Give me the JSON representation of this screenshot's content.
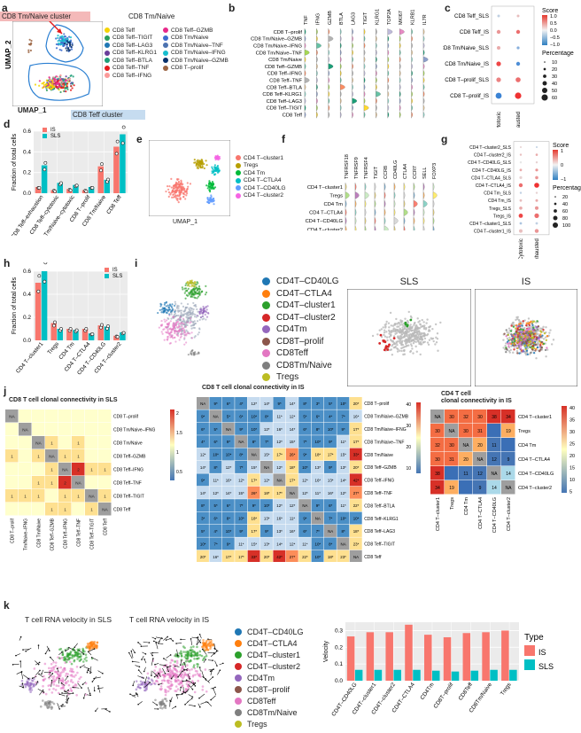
{
  "panels": {
    "a": "a",
    "b": "b",
    "c": "c",
    "d": "d",
    "e": "e",
    "f": "f",
    "g": "g",
    "h": "h",
    "i": "i",
    "j": "j",
    "k": "k"
  },
  "panel_a": {
    "title": "CD8 Tm/Naive",
    "callout_top": "CD8 Tm/Naive cluster",
    "callout_bottom": "CD8 Teff cluster",
    "xlabel": "UMAP_1",
    "ylabel": "UMAP_2",
    "legend": [
      {
        "label": "CD8 Teff",
        "color": "#f5d300"
      },
      {
        "label": "CD8 Teff–TIGIT",
        "color": "#2a9d5c"
      },
      {
        "label": "CD8 Teff–LAG3",
        "color": "#1f77b4"
      },
      {
        "label": "CD8 Teff–KLRG1",
        "color": "#6a3d9a"
      },
      {
        "label": "CD8 Teff–BTLA",
        "color": "#1b9e77"
      },
      {
        "label": "CD8 Teff–TNF",
        "color": "#e31a1c"
      },
      {
        "label": "CD8 Teff–IFNG",
        "color": "#fb9a99"
      },
      {
        "label": "CD8 Teff–GZMB",
        "color": "#e7298a"
      },
      {
        "label": "CD8 Tm/Naive",
        "color": "#3d6ccf"
      },
      {
        "label": "CD8 Tm/Naive–TNF",
        "color": "#4c72b0"
      },
      {
        "label": "CD8 Tm/Naive–IFNG",
        "color": "#17becf"
      },
      {
        "label": "CD8 Tm/Naive–GZMB",
        "color": "#08306b"
      },
      {
        "label": "CD8 T–prolif",
        "color": "#9c6644"
      }
    ]
  },
  "panel_b": {
    "genes": [
      "TNF",
      "IFNG",
      "GZMB",
      "BTLA",
      "LAG3",
      "TIGIT",
      "KLRG1",
      "TOP2A",
      "MKI67",
      "KLRB1",
      "IL7R"
    ],
    "rows": [
      "CD8 T–prolif",
      "CD8 Tm/Naive–GZMB",
      "CD8 Tm/Naive–IFNG",
      "CD8 Tm/Naive–TNF",
      "CD8 Tm/Naive",
      "CD8 Teff–GZMB",
      "CD8 Teff–IFNG",
      "CD8 Teff–TNF",
      "CD8 Teff–BTLA",
      "CD8 Teff–KLRG1",
      "CD8 Teff–LAG3",
      "CD8 Teff–TIGIT",
      "CD8 Teff"
    ]
  },
  "panel_c": {
    "rows": [
      "CD8 Teff_SLS",
      "CD8 Teff_IS",
      "CD8 Tm/Naive_SLS",
      "CD8 Tm/Naive_IS",
      "CD8 T–prolif_SLS",
      "CD8 T–prolif_IS"
    ],
    "cols": [
      "Cytotoxic",
      "Exhausted"
    ],
    "score_title": "Score",
    "score_ticks": [
      "1.0",
      "0.5",
      "0.0",
      "−0.5",
      "−1.0"
    ],
    "pct_title": "Percentage",
    "pct_ticks": [
      "10",
      "20",
      "30",
      "40",
      "50",
      "60"
    ]
  },
  "panel_d": {
    "chart_data": {
      "type": "bar",
      "ylabel": "Fraction of total cells",
      "ylim": [
        0,
        0.6
      ],
      "yticks": [
        "0.0",
        "0.2",
        "0.4",
        "0.6"
      ],
      "categories": [
        "CD8 Teff–exhaustion",
        "CD8 Teff–cytotoxic",
        "CD8 Tm/Naive–cytotoxic",
        "CD8 T–prolif",
        "CD8 Tm/Naive",
        "CD8 Teff"
      ],
      "series": [
        {
          "name": "IS",
          "color": "#f8766d",
          "values": [
            0.06,
            0.03,
            0.04,
            0.03,
            0.26,
            0.45
          ]
        },
        {
          "name": "SLS",
          "color": "#00bfc4",
          "values": [
            0.27,
            0.1,
            0.08,
            0.06,
            0.13,
            0.57
          ]
        }
      ]
    }
  },
  "panel_e": {
    "xlabel": "UMAP_1",
    "legend": [
      {
        "label": "CD4 T–cluster1",
        "color": "#f8766d"
      },
      {
        "label": "Tregs",
        "color": "#b79f00"
      },
      {
        "label": "CD4 Tm",
        "color": "#00ba38"
      },
      {
        "label": "CD4 T–CTLA4",
        "color": "#00bfc4"
      },
      {
        "label": "CD4 T–CD40LG",
        "color": "#619cff"
      },
      {
        "label": "CD4 T–cluster2",
        "color": "#f564e3"
      }
    ]
  },
  "panel_f": {
    "genes": [
      "TNFRSF18",
      "TNFRSF9",
      "TNFRSF4",
      "TIGIT",
      "CCR8",
      "CD40LG",
      "CTLA4",
      "CCR7",
      "SELL",
      "FOXP3"
    ],
    "rows": [
      "CD4 T–cluster1",
      "Tregs",
      "CD4 Tm",
      "CD4 T–CTLA4",
      "CD4 T–CD40LG",
      "CD4 T–cluster2"
    ]
  },
  "panel_g": {
    "rows": [
      "CD4 T–cluster2_SLS",
      "CD4 T–cluster2_IS",
      "CD4 T–CD40LG_SLS",
      "CD4 T–CD40LG_IS",
      "CD4 T–CTLA4_SLS",
      "CD4 T–CTLA4_IS",
      "CD4 Tm_SLS",
      "CD4 Tm_IS",
      "Tregs_SLS",
      "Tregs_IS",
      "CD4 T–cluster1_SLS",
      "CD4 T–cluster1_IS"
    ],
    "cols": [
      "Cytotoxic",
      "Exhausted"
    ],
    "score_title": "Score",
    "score_ticks": [
      "1",
      "0",
      "−1"
    ],
    "pct_title": "Percentage",
    "pct_ticks": [
      "20",
      "40",
      "60",
      "80",
      "100"
    ]
  },
  "panel_h": {
    "chart_data": {
      "type": "bar",
      "ylabel": "Fraction of total cells",
      "ylim": [
        0,
        0.6
      ],
      "yticks": [
        "0.0",
        "0.2",
        "0.4",
        "0.6"
      ],
      "categories": [
        "CD4 T–cluster1",
        "Tregs",
        "CD4 Tm",
        "CD4 T–CTLA4",
        "CD4 T–CD40LG",
        "CD4 T–cluster2"
      ],
      "series": [
        {
          "name": "IS",
          "color": "#f8766d",
          "values": [
            0.5,
            0.15,
            0.1,
            0.1,
            0.13,
            0.04
          ]
        },
        {
          "name": "SLS",
          "color": "#00bfc4",
          "values": [
            0.6,
            0.1,
            0.09,
            0.06,
            0.12,
            0.07
          ]
        }
      ]
    }
  },
  "panel_i": {
    "legend": [
      {
        "label": "CD4T–CD40LG",
        "color": "#1f77b4"
      },
      {
        "label": "CD4T–CTLA4",
        "color": "#ff7f0e"
      },
      {
        "label": "CD4T–cluster1",
        "color": "#2ca02c"
      },
      {
        "label": "CD4T–cluster2",
        "color": "#d62728"
      },
      {
        "label": "CD4Tm",
        "color": "#9467bd"
      },
      {
        "label": "CD8T–prolif",
        "color": "#8c564b"
      },
      {
        "label": "CD8Teff",
        "color": "#e377c2"
      },
      {
        "label": "CD8Tm/Naive",
        "color": "#7f7f7f"
      },
      {
        "label": "Tregs",
        "color": "#bcbd22"
      }
    ],
    "sls_title": "SLS",
    "is_title": "IS"
  },
  "panel_j": {
    "sls_title": "CD8 T cell clonal connectivity in SLS",
    "sls_rows": [
      "CD8 T–prolif",
      "CD8 Tm/Naive–IFNG",
      "CD8 Tm/Naive",
      "CD8 Teff–GZMB",
      "CD8 Teff–IFNG",
      "CD8 Teff–TNF",
      "CD8 Teff–TIGIT",
      "CD8 Teff"
    ],
    "sls_cells": [
      [
        "NA",
        "",
        "",
        "",
        "",
        "",
        "",
        ""
      ],
      [
        "",
        "NA",
        "",
        "",
        "",
        "",
        "",
        ""
      ],
      [
        "",
        "",
        "NA",
        "1",
        "",
        "1",
        "",
        ""
      ],
      [
        "1",
        "",
        "1",
        "NA",
        "1",
        "1",
        "",
        ""
      ],
      [
        "",
        "",
        "",
        "1",
        "NA",
        "2",
        "1",
        "1"
      ],
      [
        "",
        "",
        "1",
        "1",
        "2",
        "NA",
        "",
        ""
      ],
      [
        "1",
        "1",
        "1",
        "",
        "1",
        "1",
        "NA",
        "1"
      ],
      [
        "",
        "",
        "",
        "1",
        "1",
        "",
        "1",
        "NA"
      ]
    ],
    "sls_scale": [
      "2",
      "1.5",
      "1",
      "0.5"
    ],
    "is_title": "CD8 T cell clonal connectivity in IS",
    "is_rows": [
      "CD8 T–prolif",
      "CD8 Tm/Naive–GZMB",
      "CD8 Tm/Naive–IFNG",
      "CD8 Tm/Naive–TNF",
      "CD8 Tm/Naive",
      "CD8 Teff–GZMB",
      "CD8 Teff–IFNG",
      "CD8 Teff–TNF",
      "CD8 Teff–BTLA",
      "CD8 Teff–KLRG1",
      "CD8 Teff–LAG3",
      "CD8 Teff–TIGIT",
      "CD8 Teff"
    ],
    "is_scale": [
      "40",
      "30",
      "20",
      "10"
    ],
    "cd4_title_1": "CD4 T cell",
    "cd4_title_2": "clonal connectivity in IS",
    "cd4_rows": [
      "CD4 T–cluster1",
      "Tregs",
      "CD4 Tm",
      "CD4 T–CTLA4",
      "CD4 T–CD40LG",
      "CD4 T–cluster2"
    ],
    "cd4_cells": [
      [
        "NA",
        "30",
        "32",
        "30",
        "38",
        "34"
      ],
      [
        "30",
        "NA",
        "30",
        "31",
        "",
        "19"
      ],
      [
        "32",
        "30",
        "NA",
        "20",
        "11",
        ""
      ],
      [
        "30",
        "31",
        "20",
        "NA",
        "12",
        "9"
      ],
      [
        "38",
        "",
        "11",
        "12",
        "NA",
        "14"
      ],
      [
        "34",
        "19",
        "",
        "9",
        "14",
        "NA"
      ]
    ],
    "cd4_scale": [
      "40",
      "35",
      "30",
      "25",
      "20",
      "15",
      "10",
      "5"
    ]
  },
  "panel_k": {
    "sls_title": "T cell RNA velocity in SLS",
    "is_title": "T cell RNA velocity in IS",
    "legend": [
      {
        "label": "CD4T–CD40LG",
        "color": "#1f77b4"
      },
      {
        "label": "CD4T–CTLA4",
        "color": "#ff7f0e"
      },
      {
        "label": "CD4T–cluster1",
        "color": "#2ca02c"
      },
      {
        "label": "CD4T–cluster2",
        "color": "#d62728"
      },
      {
        "label": "CD4Tm",
        "color": "#9467bd"
      },
      {
        "label": "CD8T–prolif",
        "color": "#8c564b"
      },
      {
        "label": "CD8Teff",
        "color": "#e377c2"
      },
      {
        "label": "CD8Tm/Naive",
        "color": "#7f7f7f"
      },
      {
        "label": "Tregs",
        "color": "#bcbd22"
      }
    ],
    "chart_data": {
      "type": "bar",
      "ylabel": "Velocity",
      "ylim": [
        0,
        0.35
      ],
      "yticks": [
        "0.0",
        "0.1",
        "0.2",
        "0.3"
      ],
      "categories": [
        "CD4T–CD40LG",
        "CD4T–cluster1",
        "CD4T–cluster2",
        "CD4T–CTLA4",
        "CD4Tm",
        "CD8T–prolif",
        "CD8Teff",
        "CD8Tm/Naive",
        "Tregs"
      ],
      "series": [
        {
          "name": "IS",
          "color": "#f8766d",
          "values": [
            0.265,
            0.29,
            0.29,
            0.335,
            0.275,
            0.26,
            0.285,
            0.29,
            0.3
          ]
        },
        {
          "name": "SLS",
          "color": "#00bfc4",
          "values": [
            0.065,
            0.065,
            0.065,
            0.065,
            0.06,
            0.055,
            0.06,
            0.065,
            0.065
          ]
        }
      ],
      "legend_title": "Type"
    }
  }
}
